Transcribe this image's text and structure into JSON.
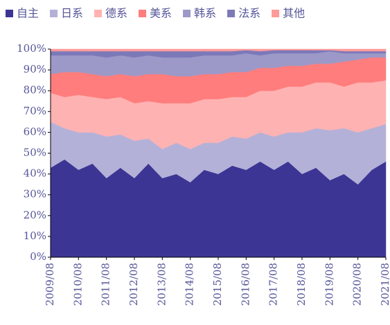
{
  "chart_data": {
    "type": "stacked_area",
    "categories": [
      "2009/08",
      null,
      "2010/08",
      null,
      "2011/08",
      null,
      "2012/08",
      null,
      "2013/08",
      null,
      "2014/08",
      null,
      "2015/08",
      null,
      "2016/08",
      null,
      "2017/08",
      null,
      "2018/08",
      null,
      "2019/08",
      null,
      "2020/08",
      null,
      "2021/08"
    ],
    "series": [
      {
        "name": "自主",
        "color": "#3d3594",
        "values": [
          43,
          47,
          42,
          45,
          38,
          43,
          38,
          45,
          38,
          40,
          36,
          42,
          40,
          44,
          42,
          46,
          42,
          46,
          40,
          43,
          37,
          40,
          35,
          42,
          46
        ]
      },
      {
        "name": "日系",
        "color": "#b4b1d8",
        "values": [
          22,
          15,
          18,
          15,
          20,
          16,
          18,
          12,
          14,
          15,
          16,
          13,
          15,
          14,
          15,
          14,
          16,
          14,
          20,
          19,
          24,
          22,
          25,
          20,
          18
        ]
      },
      {
        "name": "德系",
        "color": "#ffb2b2",
        "values": [
          14,
          15,
          18,
          17,
          18,
          18,
          18,
          18,
          22,
          19,
          22,
          21,
          21,
          19,
          20,
          20,
          22,
          22,
          22,
          22,
          23,
          20,
          24,
          22,
          21
        ]
      },
      {
        "name": "美系",
        "color": "#ff7d7d",
        "values": [
          9,
          12,
          11,
          11,
          11,
          11,
          13,
          13,
          14,
          13,
          13,
          12,
          12,
          12,
          12,
          11,
          11,
          10,
          10,
          9,
          9,
          12,
          11,
          12,
          11
        ]
      },
      {
        "name": "韩系",
        "color": "#9c99c8",
        "values": [
          9,
          8,
          8,
          9,
          9,
          9,
          9,
          9,
          8,
          9,
          9,
          9,
          9,
          8,
          9,
          6,
          7,
          6,
          6,
          5,
          6,
          4,
          3,
          2,
          2
        ]
      },
      {
        "name": "法系",
        "color": "#7c79b9",
        "values": [
          2,
          2,
          2,
          2,
          3,
          2,
          3,
          2,
          3,
          3,
          3,
          2,
          2,
          2,
          1.5,
          2,
          1.5,
          1.5,
          1.5,
          1.5,
          0.5,
          1,
          1,
          1,
          1
        ]
      },
      {
        "name": "其他",
        "color": "#ff9a9a",
        "values": [
          1,
          1,
          1,
          1,
          1,
          1,
          1,
          1,
          1,
          1,
          1,
          1,
          1,
          1,
          0.5,
          1,
          0.5,
          0.5,
          0.5,
          0.5,
          0.5,
          1,
          1,
          1,
          1
        ]
      }
    ],
    "ylim": [
      0,
      100
    ],
    "yticks": [
      {
        "value": 0,
        "label": "0%"
      },
      {
        "value": 10,
        "label": "10%"
      },
      {
        "value": 20,
        "label": "20%"
      },
      {
        "value": 30,
        "label": "30%"
      },
      {
        "value": 40,
        "label": "40%"
      },
      {
        "value": 50,
        "label": "50%"
      },
      {
        "value": 60,
        "label": "60%"
      },
      {
        "value": 70,
        "label": "70%"
      },
      {
        "value": 80,
        "label": "80%"
      },
      {
        "value": 90,
        "label": "90%"
      },
      {
        "value": 100,
        "label": "100%"
      }
    ],
    "legend": "top"
  }
}
